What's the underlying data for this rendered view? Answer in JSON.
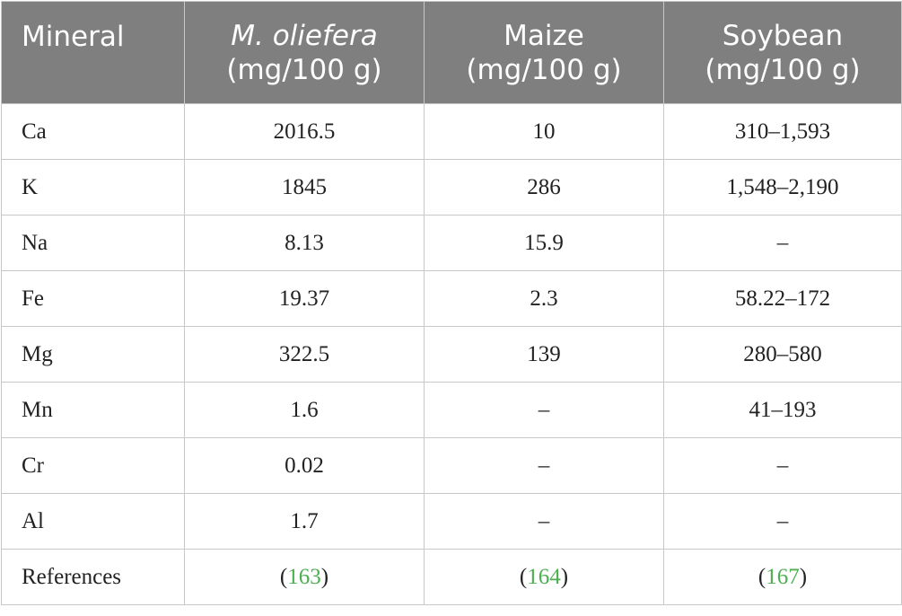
{
  "header": {
    "col1": "Mineral",
    "col2_line1": "M. oliefera",
    "col2_line2": "(mg/100 g)",
    "col3_line1": "Maize",
    "col3_line2": "(mg/100 g)",
    "col4_line1": "Soybean",
    "col4_line2": "(mg/100 g)"
  },
  "rows": [
    {
      "mineral": "Ca",
      "moringa": "2016.5",
      "maize": "10",
      "soybean": "310–1,593"
    },
    {
      "mineral": "K",
      "moringa": "1845",
      "maize": "286",
      "soybean": "1,548–2,190"
    },
    {
      "mineral": "Na",
      "moringa": "8.13",
      "maize": "15.9",
      "soybean": "–"
    },
    {
      "mineral": "Fe",
      "moringa": "19.37",
      "maize": "2.3",
      "soybean": "58.22–172"
    },
    {
      "mineral": "Mg",
      "moringa": "322.5",
      "maize": "139",
      "soybean": "280–580"
    },
    {
      "mineral": "Mn",
      "moringa": "1.6",
      "maize": "–",
      "soybean": "41–193"
    },
    {
      "mineral": "Cr",
      "moringa": "0.02",
      "maize": "–",
      "soybean": "–"
    },
    {
      "mineral": "Al",
      "moringa": "1.7",
      "maize": "–",
      "soybean": "–"
    }
  ],
  "references": {
    "label": "References",
    "open_paren": "(",
    "close_paren": ")",
    "moringa": "163",
    "maize": "164",
    "soybean": "167"
  },
  "colors": {
    "header_bg": "#7f7f7f",
    "header_text": "#ffffff",
    "reference_link": "#4caf50",
    "border": "#c8c8c8"
  }
}
